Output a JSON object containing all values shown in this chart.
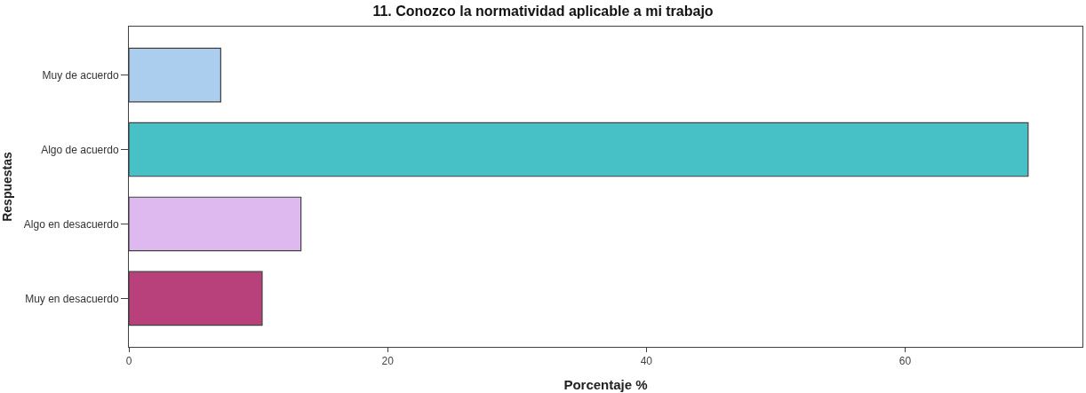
{
  "chart_data": {
    "type": "bar",
    "orientation": "horizontal",
    "title": "11. Conozco la normatividad aplicable a mi trabajo",
    "xlabel": "Porcentaje %",
    "ylabel": "Respuestas",
    "categories": [
      "Muy de acuerdo",
      "Algo de acuerdo",
      "Algo en desacuerdo",
      "Muy en desacuerdo"
    ],
    "values": [
      7.1,
      69.5,
      13.3,
      10.3
    ],
    "colors": [
      "#abcdee",
      "#48c1c6",
      "#ddb9f0",
      "#b8407b"
    ],
    "xlim": [
      0,
      73.7
    ],
    "xticks": [
      0,
      20,
      40,
      60
    ]
  }
}
